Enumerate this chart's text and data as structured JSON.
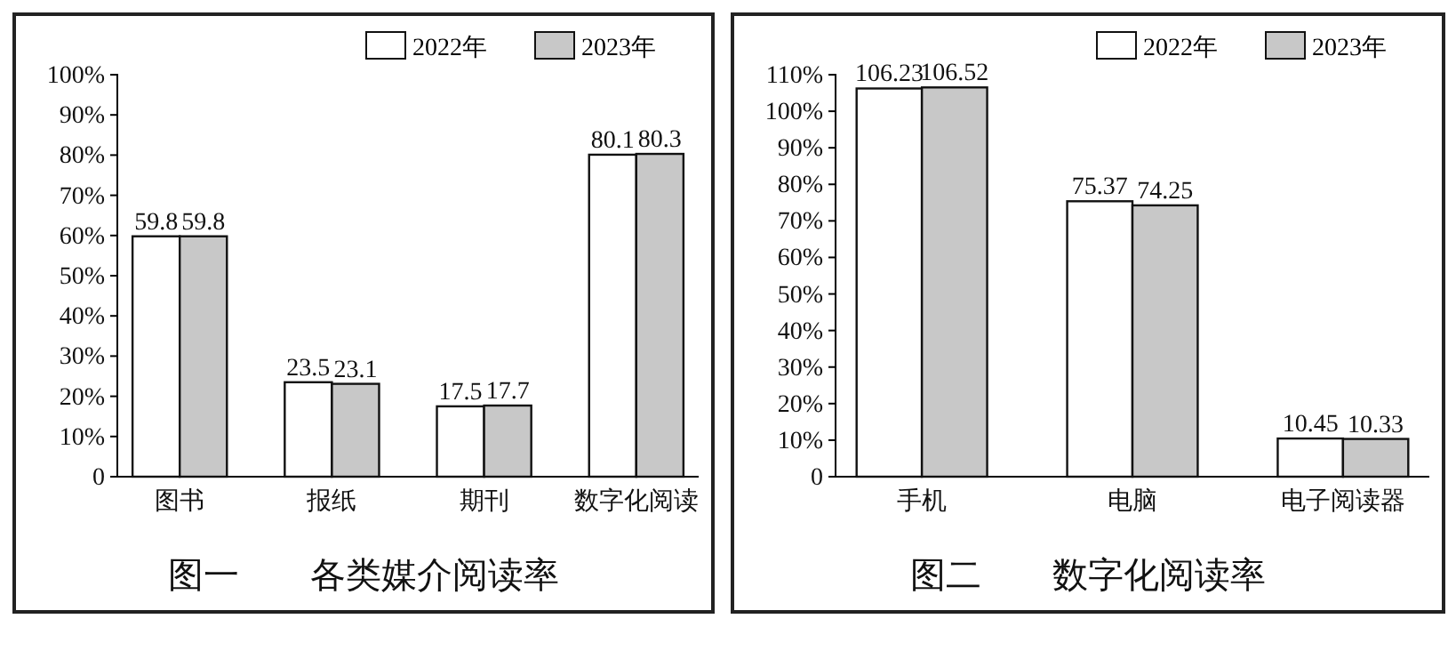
{
  "chart_data": [
    {
      "type": "bar",
      "title": "图一　　各类媒介阅读率",
      "categories": [
        "图书",
        "报纸",
        "期刊",
        "数字化阅读"
      ],
      "series": [
        {
          "name": "2022年",
          "color": "#ffffff",
          "values": [
            59.8,
            23.5,
            17.5,
            80.1
          ]
        },
        {
          "name": "2023年",
          "color": "#c8c8c8",
          "values": [
            59.8,
            23.1,
            17.7,
            80.3
          ]
        }
      ],
      "ylim": [
        0,
        100
      ],
      "yticks": [
        0,
        {
          "value": 10,
          "label": "10%"
        },
        {
          "value": 20,
          "label": "20%"
        },
        {
          "value": 30,
          "label": "30%"
        },
        {
          "value": 40,
          "label": "40%"
        },
        {
          "value": 50,
          "label": "50%"
        },
        {
          "value": 60,
          "label": "60%"
        },
        {
          "value": 70,
          "label": "70%"
        },
        {
          "value": 80,
          "label": "80%"
        },
        {
          "value": 90,
          "label": "90%"
        },
        {
          "value": 100,
          "label": "100%"
        }
      ],
      "data_labels": true,
      "legend": "top right",
      "grid": false
    },
    {
      "type": "bar",
      "title": "图二　　数字化阅读率",
      "categories": [
        "手机",
        "电脑",
        "电子阅读器"
      ],
      "series": [
        {
          "name": "2022年",
          "color": "#ffffff",
          "values": [
            106.23,
            75.37,
            10.45
          ]
        },
        {
          "name": "2023年",
          "color": "#c8c8c8",
          "values": [
            106.52,
            74.25,
            10.33
          ]
        }
      ],
      "ylim": [
        0,
        110
      ],
      "yticks": [
        0,
        {
          "value": 10,
          "label": "10%"
        },
        {
          "value": 20,
          "label": "20%"
        },
        {
          "value": 30,
          "label": "30%"
        },
        {
          "value": 40,
          "label": "40%"
        },
        {
          "value": 50,
          "label": "50%"
        },
        {
          "value": 60,
          "label": "60%"
        },
        {
          "value": 70,
          "label": "70%"
        },
        {
          "value": 80,
          "label": "80%"
        },
        {
          "value": 90,
          "label": "90%"
        },
        {
          "value": 100,
          "label": "100%"
        },
        {
          "value": 110,
          "label": "110%"
        }
      ],
      "data_labels": true,
      "legend": "top right",
      "grid": false
    }
  ]
}
